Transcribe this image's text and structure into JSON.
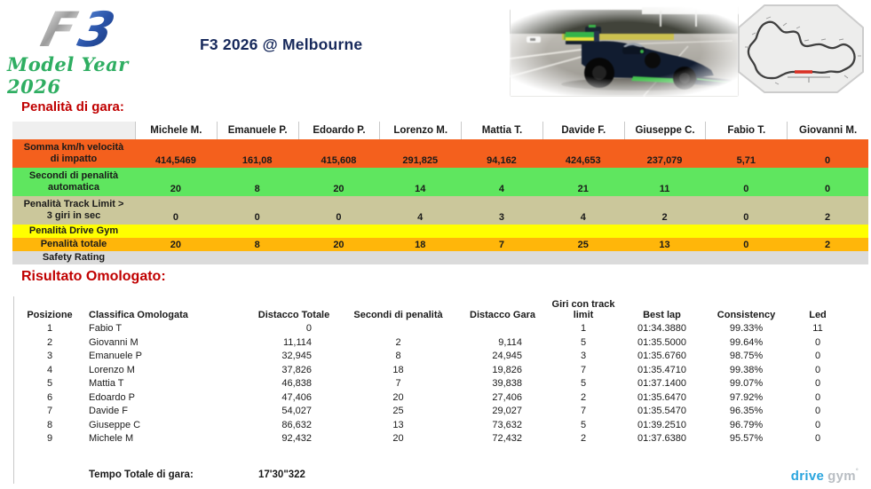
{
  "header": {
    "logo_f": "F",
    "logo_3": "3",
    "logo_subtitle": "Model Year 2026",
    "title": "F3 2026 @ Melbourne"
  },
  "penalties": {
    "heading": "Penalità di gara:",
    "drivers": [
      "Michele M.",
      "Emanuele P.",
      "Edoardo P.",
      "Lorenzo M.",
      "Mattia T.",
      "Davide F.",
      "Giuseppe C.",
      "Fabio T.",
      "Giovanni M."
    ],
    "rows": [
      {
        "label": "Somma km/h velocità\ndi impatto",
        "bg": "#F4601D",
        "values": [
          "414,5469",
          "161,08",
          "415,608",
          "291,825",
          "94,162",
          "424,653",
          "237,079",
          "5,71",
          "0"
        ]
      },
      {
        "label": "Secondi di penalità\nautomatica",
        "bg": "#5FE65F",
        "values": [
          "20",
          "8",
          "20",
          "14",
          "4",
          "21",
          "11",
          "0",
          "0"
        ]
      },
      {
        "label": "Penalità Track Limit >\n3 giri in sec",
        "bg": "#CBC79B",
        "values": [
          "0",
          "0",
          "0",
          "4",
          "3",
          "4",
          "2",
          "0",
          "2"
        ]
      },
      {
        "label": "Penalità Drive Gym",
        "bg": "#FFFF00",
        "values": [
          "",
          "",
          "",
          "",
          "",
          "",
          "",
          "",
          ""
        ]
      },
      {
        "label": "Penalità totale",
        "bg": "#FFB60A",
        "values": [
          "20",
          "8",
          "20",
          "18",
          "7",
          "25",
          "13",
          "0",
          "2"
        ]
      },
      {
        "label": "Safety Rating",
        "bg": "#DBDBDB",
        "values": [
          "",
          "",
          "",
          "",
          "",
          "",
          "",
          "",
          ""
        ]
      }
    ]
  },
  "results": {
    "heading": "Risultato Omologato:",
    "columns": [
      "Posizione",
      "Classifica Omologata",
      "Distacco Totale",
      "Secondi di penalità",
      "Distacco Gara",
      "Giri con track\nlimit",
      "Best lap",
      "Consistency",
      "Led"
    ],
    "rows": [
      [
        "1",
        "Fabio T",
        "0",
        "",
        "",
        "1",
        "01:34.3880",
        "99.33%",
        "11"
      ],
      [
        "2",
        "Giovanni M",
        "11,114",
        "2",
        "9,114",
        "5",
        "01:35.5000",
        "99.64%",
        "0"
      ],
      [
        "3",
        "Emanuele P",
        "32,945",
        "8",
        "24,945",
        "3",
        "01:35.6760",
        "98.75%",
        "0"
      ],
      [
        "4",
        "Lorenzo M",
        "37,826",
        "18",
        "19,826",
        "7",
        "01:35.4710",
        "99.38%",
        "0"
      ],
      [
        "5",
        "Mattia T",
        "46,838",
        "7",
        "39,838",
        "5",
        "01:37.1400",
        "99.07%",
        "0"
      ],
      [
        "6",
        "Edoardo P",
        "47,406",
        "20",
        "27,406",
        "2",
        "01:35.6470",
        "97.92%",
        "0"
      ],
      [
        "7",
        "Davide F",
        "54,027",
        "25",
        "29,027",
        "7",
        "01:35.5470",
        "96.35%",
        "0"
      ],
      [
        "8",
        "Giuseppe C",
        "86,632",
        "13",
        "73,632",
        "5",
        "01:39.2510",
        "96.79%",
        "0"
      ],
      [
        "9",
        "Michele M",
        "92,432",
        "20",
        "72,432",
        "2",
        "01:37.6380",
        "95.57%",
        "0"
      ]
    ],
    "total_label": "Tempo Totale di gara:",
    "total_value": "17'30\"322"
  },
  "footer": {
    "brand_primary": "drive",
    "brand_secondary": "gym",
    "brand_mark": "°"
  },
  "colors": {
    "heading_red": "#C00000",
    "title_navy": "#17295B",
    "model_year_green": "#2FAE62",
    "brand_blue": "#2AA5DE",
    "brand_gray": "#B9BEC3"
  }
}
